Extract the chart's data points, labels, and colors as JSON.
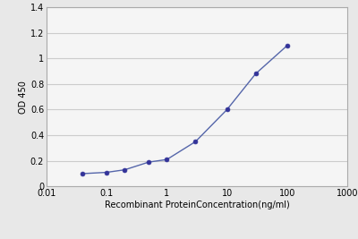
{
  "x_data": [
    0.04,
    0.1,
    0.2,
    0.5,
    1.0,
    3.0,
    10.0,
    30.0,
    100.0
  ],
  "y_data": [
    0.1,
    0.11,
    0.13,
    0.19,
    0.21,
    0.35,
    0.6,
    0.88,
    1.1
  ],
  "xlabel": "Recombinant ProteinConcentration(ng/ml)",
  "ylabel": "OD 450",
  "xlim": [
    0.01,
    1000
  ],
  "ylim": [
    0,
    1.4
  ],
  "yticks": [
    0,
    0.2,
    0.4,
    0.6,
    0.8,
    1.0,
    1.2,
    1.4
  ],
  "ytick_labels": [
    "0",
    "0.2",
    "0.4",
    "0.6",
    "0.8",
    "1",
    "1.2",
    "1.4"
  ],
  "xticks": [
    0.01,
    0.1,
    1,
    10,
    100,
    1000
  ],
  "xtick_labels": [
    "0.01",
    "0.1",
    "1",
    "10",
    "100",
    "1000"
  ],
  "line_color": "#5566aa",
  "marker_color": "#333399",
  "bg_color": "#e8e8e8",
  "plot_bg_color": "#f5f5f5",
  "grid_color": "#cccccc",
  "spine_color": "#aaaaaa",
  "label_fontsize": 7,
  "tick_fontsize": 7
}
